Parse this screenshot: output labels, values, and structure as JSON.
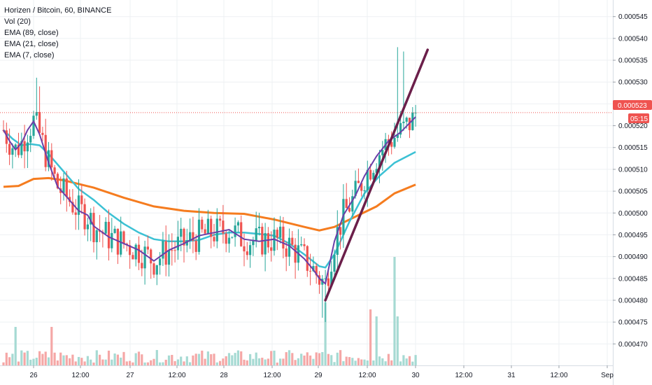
{
  "legend": {
    "symbol": "Horizen / Bitcoin, 60, BINANCE",
    "volume": "Vol (20)",
    "ema1": "EMA (89, close)",
    "ema2": "EMA (21, close)",
    "ema3": "EMA (7, close)"
  },
  "price_tag": {
    "price": "0.000523",
    "countdown": "05:15"
  },
  "colors": {
    "up": "#26a69a",
    "down": "#ef5350",
    "vol_up": "#a6dad3",
    "vol_down": "#f5a7a6",
    "ema89": "#f57c1f",
    "ema21": "#3cc1d4",
    "ema7": "#6a3ea8",
    "trendline": "#6b1f4a",
    "price_line": "#ef5350",
    "grid": "#eef0f3"
  },
  "chart_data": {
    "type": "candlestick",
    "title": "Horizen / Bitcoin, 60, BINANCE",
    "y_ticks": [
      "0.000470",
      "0.000475",
      "0.000480",
      "0.000485",
      "0.000490",
      "0.000495",
      "0.000500",
      "0.000505",
      "0.000510",
      "0.000515",
      "0.000520",
      "0.000525",
      "0.000530",
      "0.000535",
      "0.000540",
      "0.000545"
    ],
    "x_ticks": [
      "26",
      "12:00",
      "27",
      "12:00",
      "28",
      "12:00",
      "29",
      "12:00",
      "30",
      "12:00",
      "31",
      "12:00",
      "Sep"
    ],
    "ylim": [
      0.000467,
      0.000548
    ],
    "last_price": 0.000523,
    "ema_89": [
      [
        0,
        0.000506
      ],
      [
        5,
        0.0005062
      ],
      [
        10,
        0.0005078
      ],
      [
        15,
        0.000508
      ],
      [
        20,
        0.0005075
      ],
      [
        30,
        0.0005058
      ],
      [
        40,
        0.0005035
      ],
      [
        50,
        0.0005015
      ],
      [
        60,
        0.0005005
      ],
      [
        70,
        0.0005
      ],
      [
        80,
        0.0004998
      ],
      [
        90,
        0.0004985
      ],
      [
        100,
        0.0004968
      ],
      [
        105,
        0.000496
      ],
      [
        110,
        0.0004968
      ],
      [
        118,
        0.0004995
      ],
      [
        124,
        0.0005015
      ],
      [
        130,
        0.0005045
      ],
      [
        137,
        0.0005065
      ]
    ],
    "ema_21": [
      [
        0,
        0.000519
      ],
      [
        3,
        0.000517
      ],
      [
        6,
        0.0005155
      ],
      [
        9,
        0.0005158
      ],
      [
        12,
        0.0005155
      ],
      [
        15,
        0.0005135
      ],
      [
        20,
        0.0005095
      ],
      [
        25,
        0.0005055
      ],
      [
        30,
        0.000503
      ],
      [
        35,
        0.0005
      ],
      [
        40,
        0.0004975
      ],
      [
        45,
        0.0004955
      ],
      [
        50,
        0.000494
      ],
      [
        55,
        0.0004935
      ],
      [
        60,
        0.0004935
      ],
      [
        65,
        0.0004938
      ],
      [
        70,
        0.000495
      ],
      [
        75,
        0.0004955
      ],
      [
        80,
        0.0004955
      ],
      [
        85,
        0.0004952
      ],
      [
        90,
        0.0004948
      ],
      [
        95,
        0.000493
      ],
      [
        100,
        0.0004905
      ],
      [
        105,
        0.0004878
      ],
      [
        107,
        0.0004875
      ],
      [
        110,
        0.0004905
      ],
      [
        115,
        0.000498
      ],
      [
        120,
        0.0005045
      ],
      [
        125,
        0.0005085
      ],
      [
        130,
        0.0005115
      ],
      [
        137,
        0.000514
      ]
    ],
    "ema_7": [
      [
        0,
        0.000519
      ],
      [
        2,
        0.0005165
      ],
      [
        4,
        0.0005145
      ],
      [
        6,
        0.000516
      ],
      [
        8,
        0.000519
      ],
      [
        10,
        0.000521
      ],
      [
        12,
        0.000518
      ],
      [
        15,
        0.0005115
      ],
      [
        18,
        0.000506
      ],
      [
        20,
        0.0005045
      ],
      [
        25,
        0.0005005
      ],
      [
        28,
        0.0004995
      ],
      [
        30,
        0.000497
      ],
      [
        35,
        0.0004945
      ],
      [
        40,
        0.000493
      ],
      [
        45,
        0.0004915
      ],
      [
        50,
        0.000489
      ],
      [
        55,
        0.0004915
      ],
      [
        60,
        0.000493
      ],
      [
        65,
        0.0004948
      ],
      [
        70,
        0.0004955
      ],
      [
        75,
        0.0004962
      ],
      [
        80,
        0.000494
      ],
      [
        85,
        0.0004935
      ],
      [
        90,
        0.000494
      ],
      [
        95,
        0.0004925
      ],
      [
        100,
        0.0004895
      ],
      [
        103,
        0.000487
      ],
      [
        105,
        0.000485
      ],
      [
        107,
        0.0004838
      ],
      [
        110,
        0.0004935
      ],
      [
        113,
        0.0004995
      ],
      [
        117,
        0.000504
      ],
      [
        120,
        0.0005085
      ],
      [
        124,
        0.000513
      ],
      [
        128,
        0.0005165
      ],
      [
        132,
        0.0005185
      ],
      [
        137,
        0.000522
      ]
    ],
    "trendline": [
      [
        107,
        0.00048
      ],
      [
        141,
        0.0005374
      ]
    ]
  }
}
